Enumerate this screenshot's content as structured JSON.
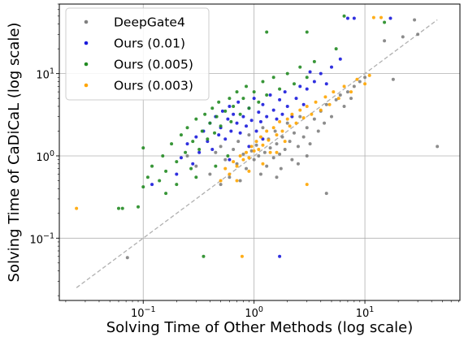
{
  "chart_data": {
    "type": "scatter",
    "xlabel": "Solving Time of Other Methods (log scale)",
    "ylabel": "Solving Time of CaDiCaL (log scale)",
    "xscale": "log",
    "yscale": "log",
    "xlim": [
      0.0175,
      72
    ],
    "ylim": [
      0.0175,
      70
    ],
    "grid": true,
    "legend_position": "top-left",
    "x_ticks": [
      {
        "value": 0.1,
        "base": "10",
        "exp": "−1"
      },
      {
        "value": 1,
        "base": "10",
        "exp": "0"
      },
      {
        "value": 10,
        "base": "10",
        "exp": "1"
      }
    ],
    "y_ticks": [
      {
        "value": 0.1,
        "base": "10",
        "exp": "−1"
      },
      {
        "value": 1,
        "base": "10",
        "exp": "0"
      },
      {
        "value": 10,
        "base": "10",
        "exp": "1"
      }
    ],
    "reference_line": {
      "style": "dashed",
      "color": "#b0b0b0",
      "from": [
        0.025,
        0.025
      ],
      "to": [
        45,
        45
      ]
    },
    "series": [
      {
        "name": "DeepGate4",
        "color": "#808080",
        "points": [
          [
            0.072,
            0.058
          ],
          [
            0.25,
            1.0
          ],
          [
            0.3,
            0.75
          ],
          [
            0.4,
            0.6
          ],
          [
            0.45,
            1.1
          ],
          [
            0.5,
            1.3
          ],
          [
            0.55,
            0.9
          ],
          [
            0.6,
            0.55
          ],
          [
            0.65,
            1.2
          ],
          [
            0.7,
            0.8
          ],
          [
            0.72,
            1.5
          ],
          [
            0.75,
            0.5
          ],
          [
            0.8,
            1.05
          ],
          [
            0.85,
            0.7
          ],
          [
            0.9,
            1.8
          ],
          [
            0.95,
            1.15
          ],
          [
            1.0,
            0.9
          ],
          [
            1.05,
            1.35
          ],
          [
            1.1,
            1.0
          ],
          [
            1.15,
            0.6
          ],
          [
            1.2,
            2.2
          ],
          [
            1.25,
            1.1
          ],
          [
            1.3,
            0.75
          ],
          [
            1.35,
            1.6
          ],
          [
            1.4,
            1.25
          ],
          [
            1.5,
            0.95
          ],
          [
            1.55,
            2.0
          ],
          [
            1.6,
            1.4
          ],
          [
            1.7,
            1.05
          ],
          [
            1.75,
            0.7
          ],
          [
            1.8,
            1.7
          ],
          [
            1.9,
            1.2
          ],
          [
            2.0,
            2.5
          ],
          [
            2.1,
            1.5
          ],
          [
            2.2,
            0.9
          ],
          [
            2.3,
            1.9
          ],
          [
            2.5,
            1.3
          ],
          [
            2.6,
            3.0
          ],
          [
            2.8,
            1.7
          ],
          [
            3.0,
            2.2
          ],
          [
            3.2,
            1.4
          ],
          [
            3.5,
            2.8
          ],
          [
            3.8,
            2.0
          ],
          [
            4.0,
            3.5
          ],
          [
            4.3,
            2.5
          ],
          [
            4.5,
            4.2
          ],
          [
            5.0,
            3.0
          ],
          [
            5.5,
            4.8
          ],
          [
            6.0,
            5.5
          ],
          [
            6.5,
            4.0
          ],
          [
            7.0,
            6.0
          ],
          [
            7.5,
            5.0
          ],
          [
            8.0,
            7.0
          ],
          [
            9.0,
            8.0
          ],
          [
            10.0,
            9.0
          ],
          [
            4.5,
            0.35
          ],
          [
            15.0,
            25.0
          ],
          [
            18.0,
            8.5
          ],
          [
            22.0,
            28.0
          ],
          [
            28.0,
            45.0
          ],
          [
            30.0,
            30.0
          ],
          [
            45.0,
            1.3
          ],
          [
            2.5,
            0.8
          ],
          [
            3.0,
            1.0
          ],
          [
            1.6,
            0.55
          ],
          [
            0.5,
            0.45
          ]
        ]
      },
      {
        "name": "Ours (0.01)",
        "color": "#1a1adb",
        "points": [
          [
            0.12,
            0.45
          ],
          [
            0.2,
            0.6
          ],
          [
            0.22,
            0.95
          ],
          [
            0.25,
            1.4
          ],
          [
            0.28,
            0.8
          ],
          [
            0.3,
            1.7
          ],
          [
            0.32,
            1.1
          ],
          [
            0.35,
            2.0
          ],
          [
            0.38,
            1.5
          ],
          [
            0.4,
            2.5
          ],
          [
            0.42,
            1.2
          ],
          [
            0.45,
            3.0
          ],
          [
            0.48,
            1.8
          ],
          [
            0.5,
            2.2
          ],
          [
            0.52,
            3.5
          ],
          [
            0.55,
            1.6
          ],
          [
            0.58,
            2.8
          ],
          [
            0.6,
            4.0
          ],
          [
            0.62,
            2.0
          ],
          [
            0.65,
            3.2
          ],
          [
            0.7,
            2.5
          ],
          [
            0.72,
            4.5
          ],
          [
            0.75,
            1.9
          ],
          [
            0.8,
            3.0
          ],
          [
            0.85,
            2.3
          ],
          [
            0.9,
            3.8
          ],
          [
            0.95,
            2.7
          ],
          [
            1.0,
            5.0
          ],
          [
            1.05,
            2.0
          ],
          [
            1.1,
            3.4
          ],
          [
            1.15,
            2.6
          ],
          [
            1.2,
            4.2
          ],
          [
            1.3,
            3.0
          ],
          [
            1.4,
            5.5
          ],
          [
            1.5,
            3.6
          ],
          [
            1.6,
            2.8
          ],
          [
            1.7,
            4.8
          ],
          [
            1.8,
            3.2
          ],
          [
            1.9,
            6.0
          ],
          [
            2.0,
            4.0
          ],
          [
            2.2,
            3.0
          ],
          [
            2.4,
            5.0
          ],
          [
            2.6,
            7.0
          ],
          [
            2.8,
            4.2
          ],
          [
            3.0,
            6.5
          ],
          [
            3.5,
            8.0
          ],
          [
            4.0,
            10.0
          ],
          [
            4.5,
            7.5
          ],
          [
            5.0,
            12.0
          ],
          [
            6.0,
            15.0
          ],
          [
            1.7,
            0.06
          ],
          [
            7.0,
            47.0
          ],
          [
            8.0,
            47.0
          ],
          [
            17.0,
            47.0
          ],
          [
            3.2,
            10.5
          ],
          [
            1.2,
            1.6
          ],
          [
            0.9,
            1.3
          ],
          [
            0.6,
            0.9
          ]
        ]
      },
      {
        "name": "Ours (0.005)",
        "color": "#228b22",
        "points": [
          [
            0.06,
            0.23
          ],
          [
            0.065,
            0.23
          ],
          [
            0.09,
            0.24
          ],
          [
            0.1,
            0.42
          ],
          [
            0.11,
            0.55
          ],
          [
            0.1,
            1.25
          ],
          [
            0.12,
            0.75
          ],
          [
            0.14,
            0.5
          ],
          [
            0.15,
            1.0
          ],
          [
            0.16,
            0.65
          ],
          [
            0.18,
            1.4
          ],
          [
            0.2,
            0.85
          ],
          [
            0.22,
            1.8
          ],
          [
            0.24,
            1.1
          ],
          [
            0.25,
            2.2
          ],
          [
            0.27,
            0.7
          ],
          [
            0.28,
            1.5
          ],
          [
            0.3,
            2.8
          ],
          [
            0.32,
            1.2
          ],
          [
            0.34,
            2.0
          ],
          [
            0.36,
            3.2
          ],
          [
            0.38,
            1.6
          ],
          [
            0.4,
            2.5
          ],
          [
            0.42,
            3.8
          ],
          [
            0.44,
            1.9
          ],
          [
            0.46,
            3.0
          ],
          [
            0.48,
            4.5
          ],
          [
            0.5,
            2.3
          ],
          [
            0.55,
            3.5
          ],
          [
            0.6,
            5.0
          ],
          [
            0.62,
            2.6
          ],
          [
            0.65,
            4.0
          ],
          [
            0.7,
            6.0
          ],
          [
            0.75,
            3.2
          ],
          [
            0.8,
            5.0
          ],
          [
            0.85,
            7.0
          ],
          [
            0.9,
            3.8
          ],
          [
            1.0,
            6.0
          ],
          [
            1.1,
            4.5
          ],
          [
            1.2,
            8.0
          ],
          [
            1.3,
            5.5
          ],
          [
            1.5,
            9.0
          ],
          [
            1.7,
            6.5
          ],
          [
            2.0,
            10.0
          ],
          [
            2.3,
            7.5
          ],
          [
            2.6,
            12.0
          ],
          [
            3.0,
            9.0
          ],
          [
            3.5,
            14.0
          ],
          [
            0.35,
            0.06
          ],
          [
            1.3,
            32.0
          ],
          [
            3.0,
            32.0
          ],
          [
            6.5,
            50.0
          ],
          [
            15.0,
            42.0
          ],
          [
            5.5,
            20.0
          ],
          [
            0.58,
            1.0
          ],
          [
            0.45,
            0.75
          ],
          [
            0.3,
            0.55
          ],
          [
            0.2,
            0.45
          ],
          [
            0.16,
            0.35
          ]
        ]
      },
      {
        "name": "Ours (0.003)",
        "color": "#ffa500",
        "points": [
          [
            0.025,
            0.23
          ],
          [
            0.5,
            0.5
          ],
          [
            0.55,
            0.7
          ],
          [
            0.6,
            0.6
          ],
          [
            0.65,
            0.85
          ],
          [
            0.7,
            0.75
          ],
          [
            0.75,
            1.0
          ],
          [
            0.78,
            0.06
          ],
          [
            0.8,
            0.9
          ],
          [
            0.85,
            1.1
          ],
          [
            0.9,
            0.95
          ],
          [
            0.95,
            1.3
          ],
          [
            1.0,
            1.15
          ],
          [
            1.05,
            1.5
          ],
          [
            1.1,
            1.2
          ],
          [
            1.15,
            1.7
          ],
          [
            1.2,
            1.35
          ],
          [
            1.3,
            2.0
          ],
          [
            1.35,
            1.55
          ],
          [
            1.4,
            1.1
          ],
          [
            1.5,
            2.2
          ],
          [
            1.6,
            1.8
          ],
          [
            1.7,
            2.6
          ],
          [
            1.8,
            2.0
          ],
          [
            1.9,
            1.5
          ],
          [
            2.0,
            2.8
          ],
          [
            2.1,
            2.3
          ],
          [
            2.2,
            3.2
          ],
          [
            2.4,
            2.5
          ],
          [
            2.6,
            3.6
          ],
          [
            2.8,
            2.9
          ],
          [
            3.0,
            4.0
          ],
          [
            3.3,
            3.2
          ],
          [
            3.6,
            4.5
          ],
          [
            4.0,
            3.6
          ],
          [
            4.4,
            5.2
          ],
          [
            4.8,
            4.2
          ],
          [
            5.2,
            6.0
          ],
          [
            5.8,
            5.0
          ],
          [
            6.5,
            7.0
          ],
          [
            7.5,
            6.0
          ],
          [
            8.5,
            8.5
          ],
          [
            10.0,
            7.5
          ],
          [
            11.0,
            9.5
          ],
          [
            12.0,
            48.0
          ],
          [
            14.0,
            48.0
          ],
          [
            3.0,
            0.45
          ],
          [
            1.2,
            0.8
          ],
          [
            0.9,
            0.65
          ],
          [
            0.7,
            0.5
          ],
          [
            1.6,
            1.1
          ]
        ]
      }
    ]
  }
}
